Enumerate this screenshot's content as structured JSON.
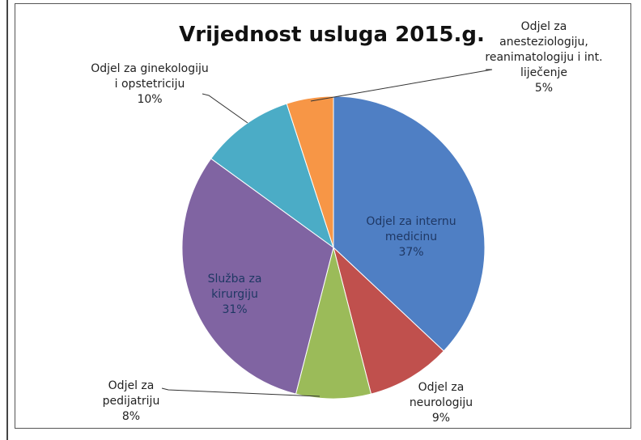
{
  "chart_data": {
    "type": "pie",
    "title": "Vrijednost usluga 2015.g.",
    "categories": [
      "Odjel za internu medicinu",
      "Odjel za neurologiju",
      "Odjel za pedijatriju",
      "Služba za kirurgiju",
      "Odjel za ginekologiju i opstetriciju",
      "Odjel za anesteziologiju, reanimatologiju i int. liječenje"
    ],
    "values": [
      37,
      9,
      8,
      31,
      10,
      5
    ],
    "value_labels": [
      "37%",
      "9%",
      "8%",
      "31%",
      "10%",
      "5%"
    ],
    "colors": [
      "#4f7fc4",
      "#c0504d",
      "#9bbb59",
      "#8064a2",
      "#4bacc6",
      "#f79646"
    ]
  }
}
